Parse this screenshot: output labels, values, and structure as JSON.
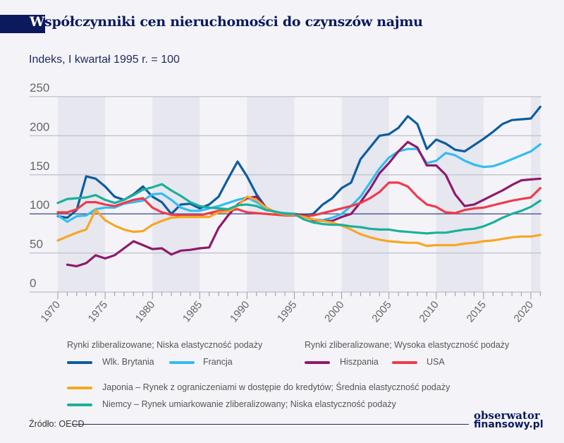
{
  "title_first": "W",
  "title_rest": "spółczynniki cen nieruchomości do czynszów najmu",
  "chart_data": {
    "type": "line",
    "title": "Współczynniki cen nieruchomości do czynszów najmu",
    "subtitle": "Indeks, I kwartał 1995 r. = 100",
    "ylim": [
      0,
      250
    ],
    "yticks": [
      0,
      50,
      100,
      150,
      200,
      250
    ],
    "xlim": [
      1970,
      2021
    ],
    "xticks": [
      1970,
      1975,
      1980,
      1985,
      1990,
      1995,
      2000,
      2005,
      2010,
      2015,
      2020
    ],
    "grid": true,
    "shaded_periods": [
      [
        1970,
        1975
      ],
      [
        1980,
        1985
      ],
      [
        1990,
        1995
      ],
      [
        2000,
        2005
      ],
      [
        2010,
        2015
      ],
      [
        2020,
        2021
      ]
    ],
    "x": [
      1970,
      1971,
      1972,
      1973,
      1974,
      1975,
      1976,
      1977,
      1978,
      1979,
      1980,
      1981,
      1982,
      1983,
      1984,
      1985,
      1986,
      1987,
      1988,
      1989,
      1990,
      1991,
      1992,
      1993,
      1994,
      1995,
      1996,
      1997,
      1998,
      1999,
      2000,
      2001,
      2002,
      2003,
      2004,
      2005,
      2006,
      2007,
      2008,
      2009,
      2010,
      2011,
      2012,
      2013,
      2014,
      2015,
      2016,
      2017,
      2018,
      2019,
      2020,
      2021
    ],
    "series": [
      {
        "name": "Wlk. Brytania",
        "color": "#0d5c9e",
        "values": [
          97,
          95,
          105,
          148,
          145,
          135,
          122,
          118,
          125,
          135,
          122,
          115,
          100,
          112,
          113,
          107,
          112,
          122,
          145,
          167,
          148,
          125,
          108,
          102,
          100,
          100,
          98,
          100,
          112,
          120,
          133,
          140,
          170,
          185,
          200,
          202,
          210,
          225,
          215,
          183,
          195,
          190,
          182,
          180,
          188,
          196,
          205,
          215,
          220,
          221,
          222,
          237
        ]
      },
      {
        "name": "Francja",
        "color": "#33bdf0",
        "values": [
          98,
          90,
          97,
          98,
          106,
          108,
          108,
          113,
          115,
          117,
          125,
          126,
          118,
          108,
          104,
          104,
          107,
          110,
          114,
          118,
          121,
          115,
          107,
          102,
          101,
          100,
          96,
          93,
          92,
          95,
          100,
          110,
          122,
          140,
          158,
          172,
          180,
          183,
          183,
          165,
          168,
          178,
          175,
          168,
          163,
          160,
          161,
          165,
          170,
          175,
          180,
          189
        ]
      },
      {
        "name": "Hiszpania",
        "color": "#8e1a6b",
        "values": [
          null,
          35,
          33,
          37,
          47,
          43,
          47,
          56,
          65,
          60,
          55,
          56,
          48,
          53,
          54,
          56,
          57,
          82,
          98,
          112,
          120,
          122,
          108,
          102,
          100,
          100,
          98,
          92,
          91,
          91,
          96,
          100,
          115,
          132,
          152,
          165,
          180,
          192,
          185,
          162,
          162,
          150,
          125,
          110,
          112,
          118,
          124,
          130,
          137,
          143,
          144,
          145
        ]
      },
      {
        "name": "USA",
        "color": "#f03a4c",
        "values": [
          102,
          102,
          106,
          115,
          115,
          112,
          110,
          114,
          118,
          120,
          108,
          102,
          99,
          98,
          98,
          98,
          101,
          104,
          104,
          106,
          102,
          101,
          100,
          99,
          98,
          98,
          97,
          98,
          101,
          104,
          107,
          110,
          114,
          120,
          128,
          140,
          140,
          135,
          122,
          112,
          109,
          102,
          101,
          105,
          107,
          108,
          111,
          114,
          117,
          119,
          121,
          133
        ]
      },
      {
        "name": "Japonia – Rynek z ograniczeniami w dostępie do kredytów; Średnia elastyczność podaży",
        "color": "#f8a623",
        "values": [
          66,
          71,
          76,
          80,
          105,
          92,
          85,
          80,
          77,
          78,
          86,
          91,
          95,
          96,
          96,
          96,
          96,
          102,
          103,
          110,
          122,
          118,
          108,
          102,
          99,
          99,
          96,
          93,
          91,
          89,
          85,
          80,
          74,
          70,
          67,
          65,
          64,
          63,
          63,
          59,
          60,
          60,
          60,
          62,
          63,
          65,
          66,
          68,
          70,
          71,
          71,
          73
        ]
      },
      {
        "name": "Niemcy – Rynek umiarkowanie zliberalizowany; Niska elastyczność podaży",
        "color": "#1bb09b",
        "values": [
          114,
          119,
          120,
          121,
          124,
          118,
          114,
          118,
          124,
          131,
          134,
          138,
          130,
          123,
          115,
          110,
          108,
          107,
          106,
          111,
          112,
          110,
          105,
          103,
          100,
          100,
          93,
          89,
          87,
          86,
          86,
          84,
          83,
          81,
          80,
          80,
          78,
          77,
          76,
          75,
          76,
          76,
          78,
          80,
          81,
          84,
          89,
          95,
          100,
          104,
          109,
          117
        ]
      }
    ]
  },
  "legend": {
    "group1": "Rynki zliberalizowane; Niska elastyczność podaży",
    "group2": "Rynki zliberalizowane; Wysoka elastyczność podaży",
    "uk": "Wlk. Brytania",
    "fr": "Francja",
    "es": "Hiszpania",
    "us": "USA",
    "jp": "Japonia – Rynek z ograniczeniami w dostępie do kredytów; Średnia elastyczność podaży",
    "de": "Niemcy – Rynek umiarkowanie zliberalizowany; Niska elastyczność podaży"
  },
  "source": "Źródło: OECD",
  "logo": {
    "line1": "obserwator",
    "line2": "finansowy.pl"
  }
}
